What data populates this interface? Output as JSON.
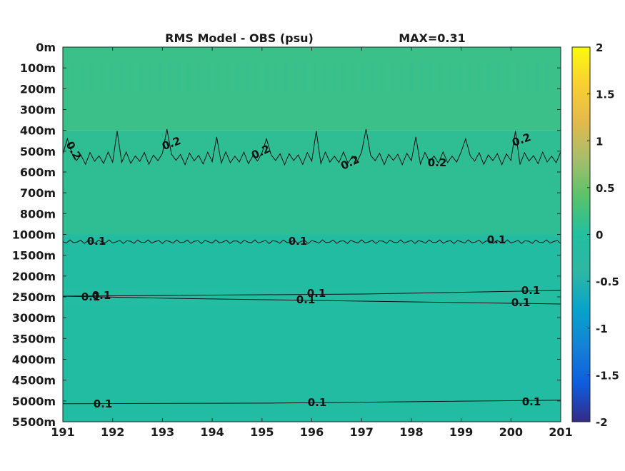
{
  "chart_data": {
    "type": "heatmap",
    "title": "RMS Model - OBS (psu)",
    "max_label": "MAX=0.31",
    "xlabel": "",
    "ylabel": "",
    "x_ticks": [
      "191",
      "192",
      "193",
      "194",
      "195",
      "196",
      "197",
      "198",
      "199",
      "200",
      "201"
    ],
    "xlim": [
      191,
      201
    ],
    "y_ticks": [
      "0m",
      "100m",
      "200m",
      "300m",
      "400m",
      "500m",
      "600m",
      "700m",
      "800m",
      "1000m",
      "1500m",
      "2000m",
      "2500m",
      "3000m",
      "3500m",
      "4000m",
      "4500m",
      "5000m",
      "5500m"
    ],
    "colorbar": {
      "min": -2,
      "max": 2,
      "ticks": [
        "2",
        "1.5",
        "1",
        "0.5",
        "0",
        "-0.5",
        "-1",
        "-1.5",
        "-2"
      ],
      "colormap": "parula"
    },
    "field": {
      "bands": [
        {
          "depth_range": [
            "0m",
            "400m"
          ],
          "value": 0.28,
          "color": "#3cc08a"
        },
        {
          "depth_range": [
            "400m",
            "1000m"
          ],
          "value": 0.2,
          "color": "#2fbe93"
        },
        {
          "depth_range": [
            "1000m",
            "5500m"
          ],
          "value": 0.11,
          "color": "#22bca3"
        }
      ]
    },
    "contours": [
      {
        "level": 0.2,
        "depth": "~550m",
        "labels": [
          "0.2",
          "0.2",
          "0.2",
          "0.2",
          "0.2",
          "0.2"
        ]
      },
      {
        "level": 0.1,
        "depth": "~1200m",
        "labels": [
          "0.1",
          "0.1",
          "0.1"
        ]
      },
      {
        "level": 0.1,
        "depth": "~2500m",
        "labels": [
          "0.1",
          "0.1",
          "0.1"
        ]
      },
      {
        "level": 0.1,
        "depth": "~2600m",
        "labels": [
          "0.1",
          "0.1",
          "0.1"
        ]
      },
      {
        "level": 0.1,
        "depth": "~5050m",
        "labels": [
          "0.1",
          "0.1",
          "0.1"
        ]
      }
    ],
    "grid": false
  }
}
